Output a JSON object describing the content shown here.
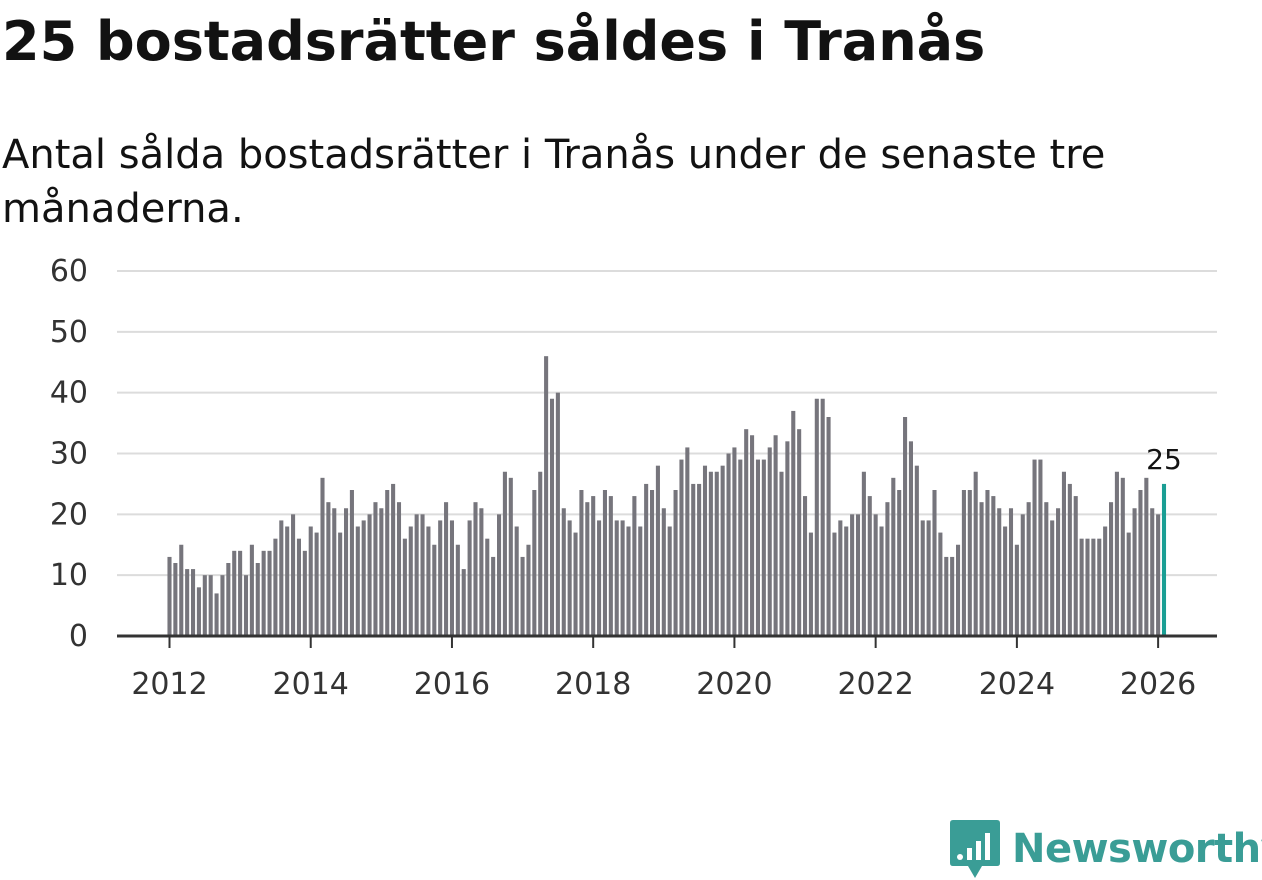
{
  "title": "25 bostadsrätter såldes i Tranås",
  "subtitle": "Antal sålda bostadsrätter i Tranås under de senaste tre månaderna.",
  "brand": {
    "name": "Newsworthy",
    "icon": "newsworthy-logo-icon"
  },
  "colors": {
    "bar": "#76757c",
    "highlight": "#1a9e94",
    "grid": "#dcdcdc",
    "axis": "#333333",
    "brand": "#3a9d96"
  },
  "chart_data": {
    "type": "bar",
    "title": "25 bostadsrätter såldes i Tranås",
    "xlabel": "",
    "ylabel": "",
    "ylim": [
      0,
      60
    ],
    "yticks": [
      0,
      10,
      20,
      30,
      40,
      50,
      60
    ],
    "xticks": [
      "2012",
      "2014",
      "2016",
      "2018",
      "2020",
      "2022",
      "2024",
      "2026"
    ],
    "start": "2012-01",
    "frequency": "monthly",
    "highlight_label": "25",
    "grid": true,
    "values": [
      13,
      12,
      15,
      11,
      11,
      8,
      10,
      10,
      7,
      10,
      12,
      14,
      14,
      10,
      15,
      12,
      14,
      14,
      16,
      19,
      18,
      20,
      16,
      14,
      18,
      17,
      26,
      22,
      21,
      17,
      21,
      24,
      18,
      19,
      20,
      22,
      21,
      24,
      25,
      22,
      16,
      18,
      20,
      20,
      18,
      15,
      19,
      22,
      19,
      15,
      11,
      19,
      22,
      21,
      16,
      13,
      20,
      27,
      26,
      18,
      13,
      15,
      24,
      27,
      46,
      39,
      40,
      21,
      19,
      17,
      24,
      22,
      23,
      19,
      24,
      23,
      19,
      19,
      18,
      23,
      18,
      25,
      24,
      28,
      21,
      18,
      24,
      29,
      31,
      25,
      25,
      28,
      27,
      27,
      28,
      30,
      31,
      29,
      34,
      33,
      29,
      29,
      31,
      33,
      27,
      32,
      37,
      34,
      23,
      17,
      39,
      39,
      36,
      17,
      19,
      18,
      20,
      20,
      27,
      23,
      20,
      18,
      22,
      26,
      24,
      36,
      32,
      28,
      19,
      19,
      24,
      17,
      13,
      13,
      15,
      24,
      24,
      27,
      22,
      24,
      23,
      21,
      18,
      21,
      15,
      20,
      22,
      29,
      29,
      22,
      19,
      21,
      27,
      25,
      23,
      16,
      16,
      16,
      16,
      18,
      22,
      27,
      26,
      17,
      21,
      24,
      26,
      21,
      20,
      25
    ]
  }
}
